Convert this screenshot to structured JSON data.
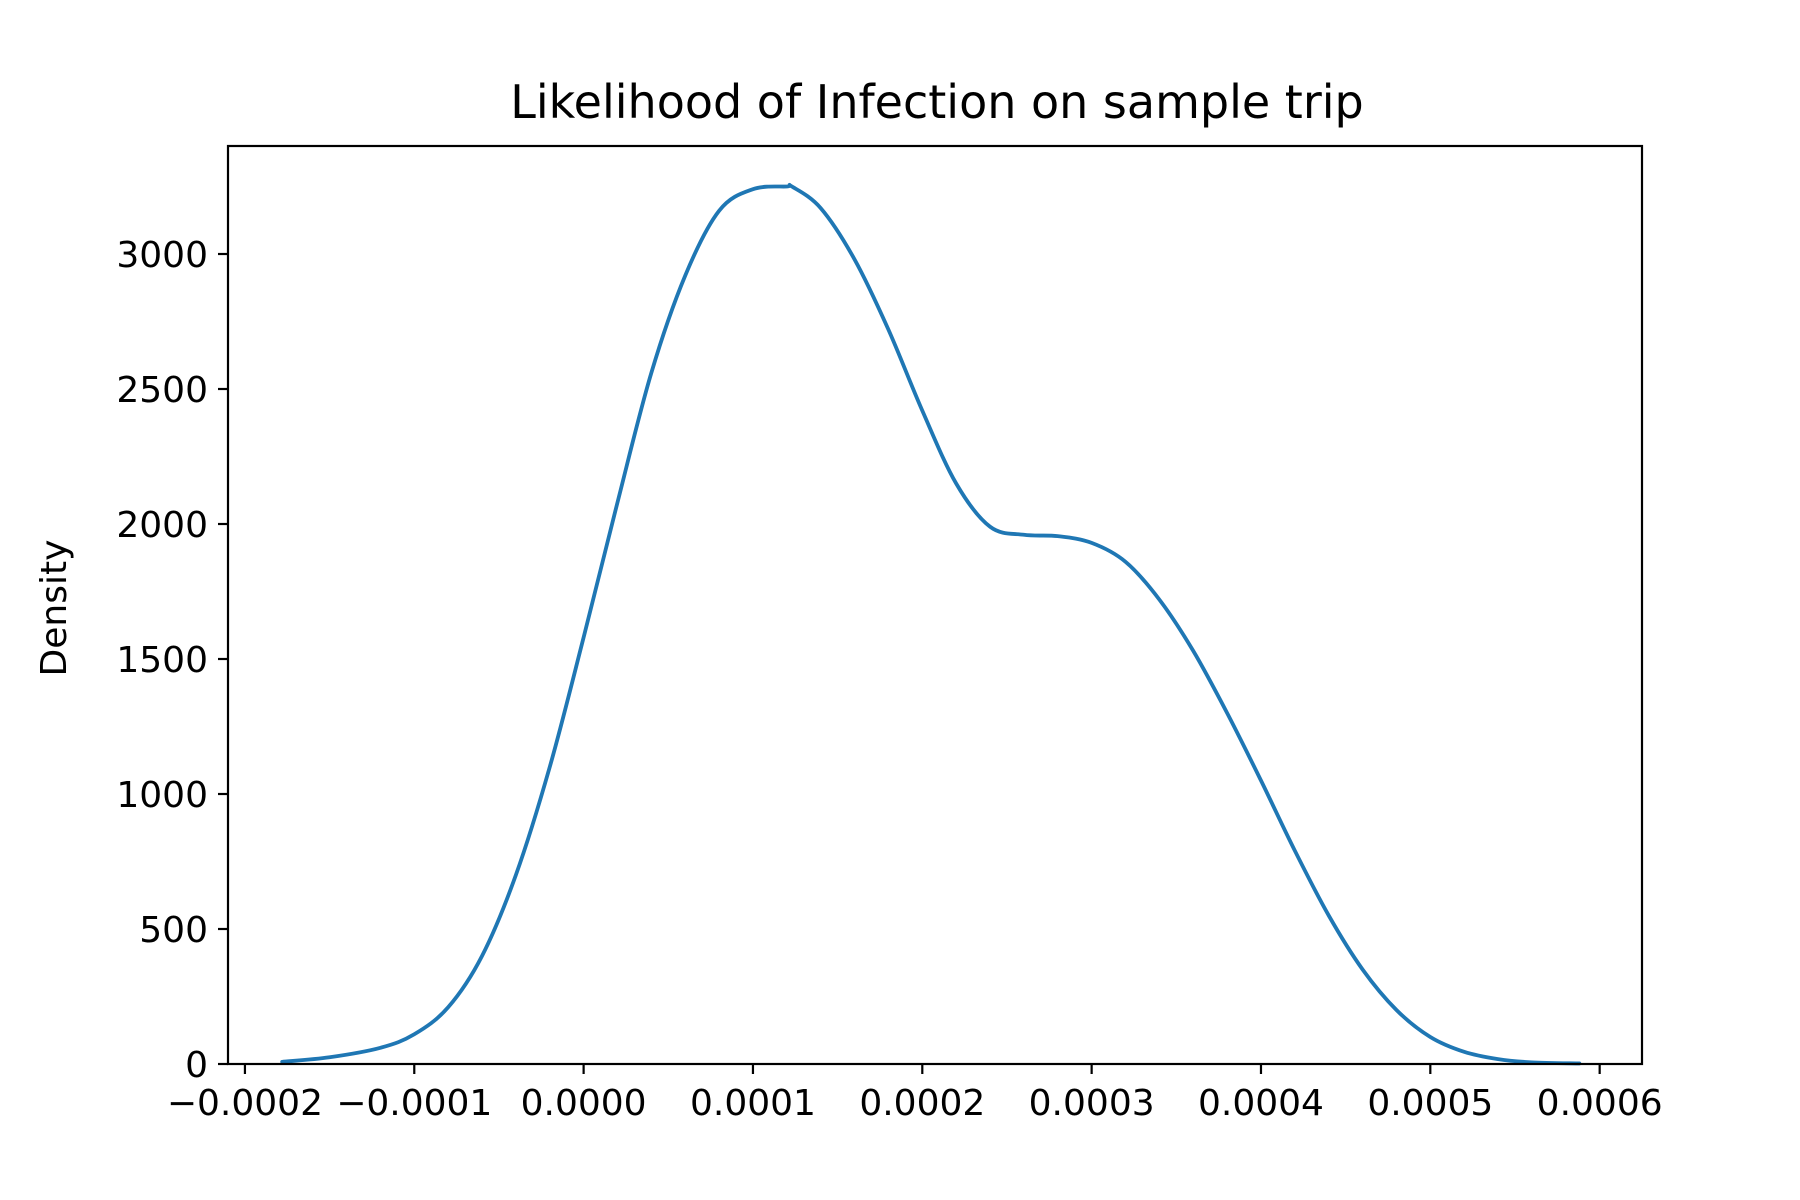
{
  "chart_data": {
    "type": "line",
    "title": "Likelihood of Infection on sample trip",
    "xlabel": "",
    "ylabel": "Density",
    "xlim": [
      -0.00021,
      0.000625
    ],
    "ylim": [
      0,
      3400
    ],
    "grid": false,
    "legend": "none",
    "line_color": "#1f77b4",
    "x_ticks": [
      -0.0002,
      -0.0001,
      0.0,
      0.0001,
      0.0002,
      0.0003,
      0.0004,
      0.0005,
      0.0006
    ],
    "x_tick_labels": [
      "−0.0002",
      "−0.0001",
      "0.0000",
      "0.0001",
      "0.0002",
      "0.0003",
      "0.0004",
      "0.0005",
      "0.0006"
    ],
    "y_ticks": [
      0,
      500,
      1000,
      1500,
      2000,
      2500,
      3000
    ],
    "y_tick_labels": [
      "0",
      "500",
      "1000",
      "1500",
      "2000",
      "2500",
      "3000"
    ],
    "series": [
      {
        "x": [
          -0.000178,
          -0.00015,
          -0.00012,
          -0.0001,
          -8e-05,
          -6e-05,
          -4e-05,
          -2e-05,
          0.0,
          2e-05,
          4e-05,
          6e-05,
          8e-05,
          0.0001,
          0.00012,
          0.000123,
          0.00014,
          0.00016,
          0.00018,
          0.0002,
          0.00022,
          0.00024,
          0.00026,
          0.00028,
          0.0003,
          0.00032,
          0.00034,
          0.00036,
          0.00038,
          0.0004,
          0.00042,
          0.00044,
          0.00046,
          0.00048,
          0.0005,
          0.00052,
          0.00054,
          0.00056,
          0.000588
        ],
        "y": [
          8,
          25,
          60,
          110,
          210,
          400,
          700,
          1100,
          1580,
          2080,
          2560,
          2920,
          3160,
          3240,
          3250,
          3250,
          3170,
          2980,
          2720,
          2420,
          2150,
          1990,
          1960,
          1955,
          1930,
          1860,
          1720,
          1530,
          1300,
          1050,
          790,
          550,
          350,
          200,
          100,
          45,
          18,
          6,
          2
        ]
      }
    ]
  }
}
